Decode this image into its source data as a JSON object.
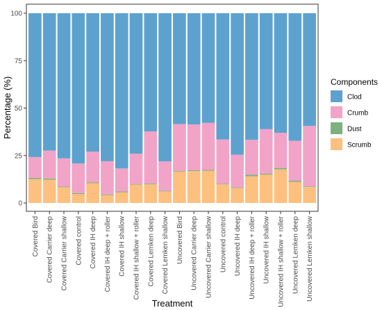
{
  "chart_data": {
    "type": "bar",
    "stacked": true,
    "xlabel": "Treatment",
    "ylabel": "Percentage (%)",
    "ylim": [
      0,
      100
    ],
    "yticks": [
      0,
      25,
      50,
      75,
      100
    ],
    "grid": false,
    "legend": {
      "title": "Components",
      "placement": "right"
    },
    "categories": [
      "Covered Bird",
      "Covered Carrier deep",
      "Covered Carrier shallow",
      "Covered control",
      "Covered IH deep",
      "Covered IH deep + roller",
      "Covered IH shallow",
      "Covered IH shallow + roller",
      "Covered Lemken deep",
      "Covered Lemken shallow",
      "Uncovered Bird",
      "Uncovered Carrier deep",
      "Uncovered Carrier shallow",
      "Uncovered control",
      "Uncovered IH deep",
      "Uncovered IH deep + roller",
      "Uncovered IH shallow",
      "Uncovered IH shallow + roller",
      "Uncovered Lemken deep",
      "Uncovered Lemken shallow"
    ],
    "series": [
      {
        "name": "Clod",
        "color": "#5da2cf",
        "values": [
          75.8,
          72.4,
          76.5,
          79.2,
          72.9,
          78.0,
          81.8,
          74.0,
          62.3,
          78.1,
          58.4,
          58.6,
          57.8,
          66.5,
          74.6,
          66.7,
          61.1,
          63.0,
          67.2,
          59.4
        ]
      },
      {
        "name": "Crumb",
        "color": "#f1a3c8",
        "values": [
          11.0,
          14.7,
          14.9,
          15.6,
          16.3,
          17.5,
          12.1,
          16.0,
          27.5,
          15.5,
          24.8,
          24.2,
          24.8,
          23.4,
          17.2,
          18.4,
          23.4,
          18.6,
          21.1,
          31.9
        ]
      },
      {
        "name": "Dust",
        "color": "#7cb07d",
        "values": [
          0.6,
          0.6,
          0.3,
          0.5,
          0.4,
          0.4,
          0.5,
          0.3,
          0.4,
          0.3,
          0.3,
          0.4,
          0.4,
          0.3,
          0.3,
          0.8,
          0.5,
          0.7,
          0.6,
          0.3
        ]
      },
      {
        "name": "Scrumb",
        "color": "#fdc07f",
        "values": [
          12.6,
          12.3,
          8.3,
          4.7,
          10.4,
          4.1,
          5.6,
          9.7,
          9.8,
          6.1,
          16.5,
          16.8,
          17.0,
          9.8,
          7.9,
          14.1,
          15.0,
          17.7,
          11.1,
          8.4
        ]
      }
    ]
  }
}
